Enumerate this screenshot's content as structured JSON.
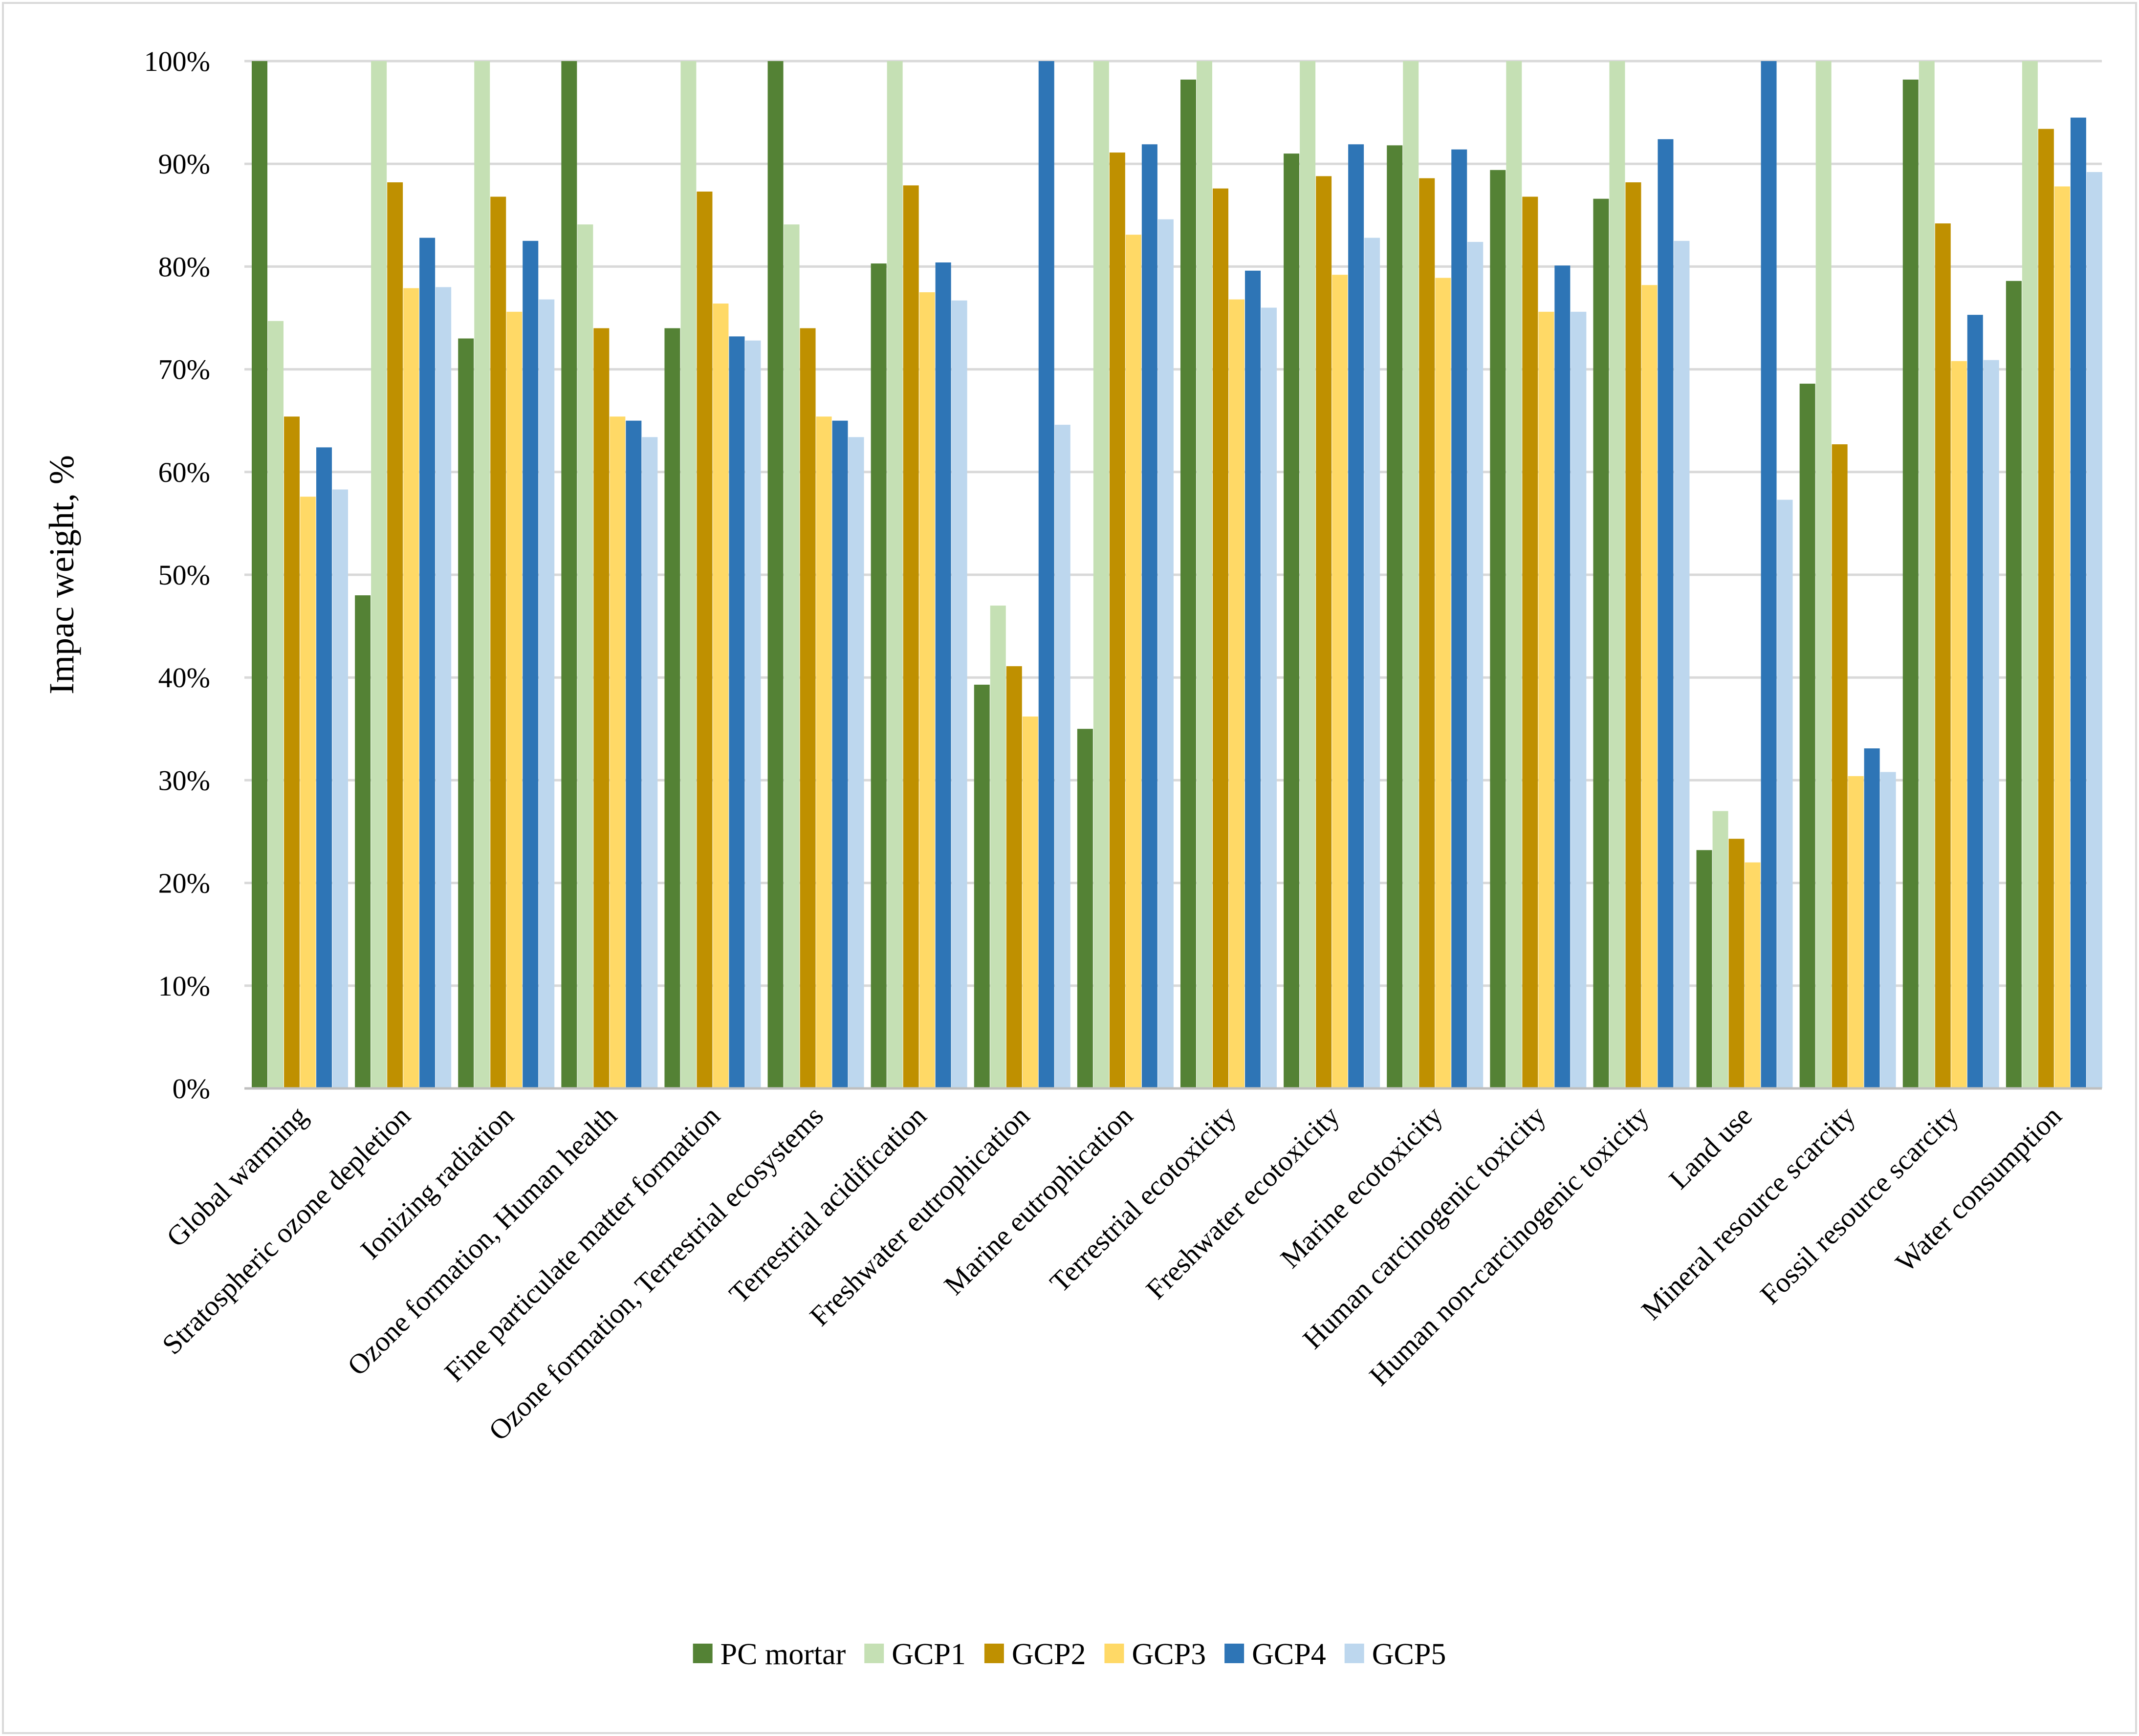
{
  "chart_data": {
    "type": "bar",
    "title": "",
    "xlabel": "",
    "ylabel": "Impac weight, %",
    "ylim": [
      0,
      100
    ],
    "y_ticks": [
      "0%",
      "10%",
      "20%",
      "30%",
      "40%",
      "50%",
      "60%",
      "70%",
      "80%",
      "90%",
      "100%"
    ],
    "y_tick_values": [
      0,
      10,
      20,
      30,
      40,
      50,
      60,
      70,
      80,
      90,
      100
    ],
    "grid": true,
    "legend_position": "bottom",
    "categories": [
      "Global warming",
      "Stratospheric ozone depletion",
      "Ionizing radiation",
      "Ozone formation, Human health",
      "Fine particulate matter formation",
      "Ozone formation, Terrestrial ecosystems",
      "Terrestrial acidification",
      "Freshwater eutrophication",
      "Marine eutrophication",
      "Terrestrial ecotoxicity",
      "Freshwater ecotoxicity",
      "Marine ecotoxicity",
      "Human carcinogenic toxicity",
      "Human non-carcinogenic toxicity",
      "Land use",
      "Mineral resource scarcity",
      "Fossil resource scarcity",
      "Water consumption"
    ],
    "series": [
      {
        "name": "PC mortar",
        "color": "#548235",
        "values": [
          100,
          48,
          73,
          100,
          74,
          100,
          80.3,
          39.3,
          35,
          98.2,
          91,
          91.8,
          89.4,
          86.6,
          23.2,
          68.6,
          98.2,
          78.6
        ]
      },
      {
        "name": "GCP1",
        "color": "#c5e0b4",
        "values": [
          74.7,
          100,
          100,
          84.1,
          100,
          84.1,
          100,
          47,
          100,
          100,
          100,
          100,
          100,
          100,
          27,
          100,
          100,
          100
        ]
      },
      {
        "name": "GCP2",
        "color": "#bf9000",
        "values": [
          65.4,
          88.2,
          86.8,
          74,
          87.3,
          74,
          87.9,
          41.1,
          91.1,
          87.6,
          88.8,
          88.6,
          86.8,
          88.2,
          24.3,
          62.7,
          84.2,
          93.4
        ]
      },
      {
        "name": "GCP3",
        "color": "#ffd966",
        "values": [
          57.6,
          77.9,
          75.6,
          65.4,
          76.4,
          65.4,
          77.5,
          36.2,
          83.1,
          76.8,
          79.2,
          78.9,
          75.6,
          78.2,
          22,
          30.4,
          70.8,
          87.8
        ]
      },
      {
        "name": "GCP4",
        "color": "#2e75b6",
        "values": [
          62.4,
          82.8,
          82.5,
          65,
          73.2,
          65,
          80.4,
          100,
          91.9,
          79.6,
          91.9,
          91.4,
          80.1,
          92.4,
          100,
          33.1,
          75.3,
          94.5
        ]
      },
      {
        "name": "GCP5",
        "color": "#bdd7ee",
        "values": [
          58.3,
          78,
          76.8,
          63.4,
          72.8,
          63.4,
          76.7,
          64.6,
          84.6,
          76,
          82.8,
          82.4,
          75.6,
          82.5,
          57.3,
          30.8,
          70.9,
          89.2
        ]
      }
    ]
  }
}
